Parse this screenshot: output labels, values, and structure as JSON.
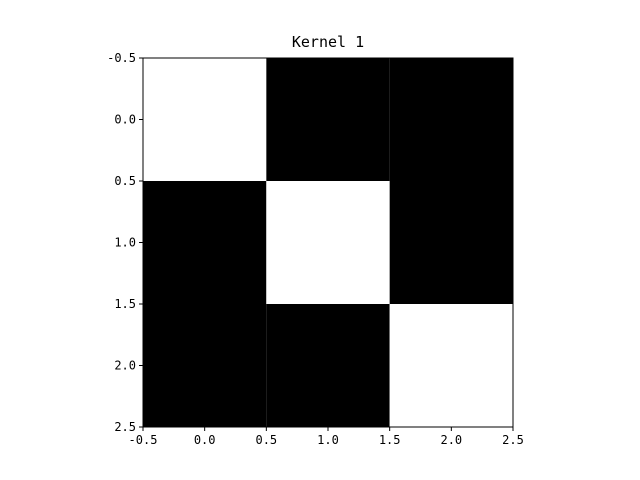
{
  "chart_data": {
    "type": "heatmap",
    "title": "Kernel 1",
    "xlabel": "",
    "ylabel": "",
    "colormap": "gray",
    "colors": {
      "low": "#000000",
      "high": "#ffffff"
    },
    "values": [
      [
        1,
        0,
        0
      ],
      [
        0,
        1,
        0
      ],
      [
        0,
        0,
        1
      ]
    ],
    "xlim": [
      -0.5,
      2.5
    ],
    "ylim": [
      2.5,
      -0.5
    ],
    "xticks": [
      -0.5,
      0.0,
      0.5,
      1.0,
      1.5,
      2.0,
      2.5
    ],
    "xtick_labels": [
      "-0.5",
      "0.0",
      "0.5",
      "1.0",
      "1.5",
      "2.0",
      "2.5"
    ],
    "yticks": [
      -0.5,
      0.0,
      0.5,
      1.0,
      1.5,
      2.0,
      2.5
    ],
    "ytick_labels": [
      "-0.5",
      "0.0",
      "0.5",
      "1.0",
      "1.5",
      "2.0",
      "2.5"
    ],
    "grid": false,
    "legend": "none"
  }
}
